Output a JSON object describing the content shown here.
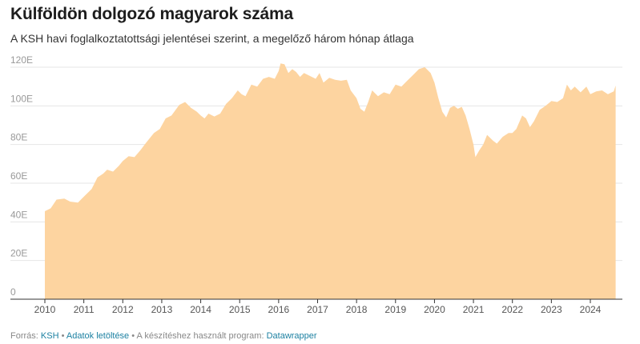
{
  "header": {
    "title": "Külföldön dolgozó magyarok száma",
    "subtitle": "A KSH havi foglalkoztatottsági jelentései szerint, a megelőző három hónap átlaga"
  },
  "footer": {
    "source_prefix": "Forrás:",
    "source_link": "KSH",
    "sep1": "•",
    "download_link": "Adatok letöltése",
    "sep2": "• A készítéshez használt program:",
    "tool_link": "Datawrapper"
  },
  "colors": {
    "area_fill": "#fdd4a0",
    "gridline": "#e6e6e6",
    "link": "#1d81a2"
  },
  "chart_data": {
    "type": "area",
    "title": "Külföldön dolgozó magyarok száma",
    "xlabel": "",
    "ylabel": "",
    "ylim": [
      0,
      120000
    ],
    "xlim": [
      2009.5,
      2025.0
    ],
    "yticks": [
      {
        "value": 0,
        "label": "0"
      },
      {
        "value": 20000,
        "label": "20E"
      },
      {
        "value": 40000,
        "label": "40E"
      },
      {
        "value": 60000,
        "label": "60E"
      },
      {
        "value": 80000,
        "label": "80E"
      },
      {
        "value": 100000,
        "label": "100E"
      },
      {
        "value": 120000,
        "label": "120E"
      }
    ],
    "xticks": [
      "2010",
      "2011",
      "2012",
      "2013",
      "2014",
      "2015",
      "2016",
      "2017",
      "2018",
      "2019",
      "2020",
      "2021",
      "2022",
      "2023",
      "2024"
    ],
    "grid": true,
    "series": [
      {
        "points": [
          [
            2010.0,
            45500
          ],
          [
            2010.15,
            47000
          ],
          [
            2010.3,
            51500
          ],
          [
            2010.5,
            52000
          ],
          [
            2010.65,
            50500
          ],
          [
            2010.85,
            50000
          ],
          [
            2011.0,
            53000
          ],
          [
            2011.2,
            57000
          ],
          [
            2011.35,
            63000
          ],
          [
            2011.5,
            65000
          ],
          [
            2011.6,
            67000
          ],
          [
            2011.75,
            66000
          ],
          [
            2011.9,
            69000
          ],
          [
            2012.0,
            71500
          ],
          [
            2012.15,
            74000
          ],
          [
            2012.3,
            73500
          ],
          [
            2012.45,
            77000
          ],
          [
            2012.6,
            81000
          ],
          [
            2012.8,
            86000
          ],
          [
            2012.95,
            88000
          ],
          [
            2013.1,
            93500
          ],
          [
            2013.25,
            95000
          ],
          [
            2013.45,
            100500
          ],
          [
            2013.6,
            102000
          ],
          [
            2013.75,
            99000
          ],
          [
            2013.9,
            97000
          ],
          [
            2014.0,
            95000
          ],
          [
            2014.1,
            93500
          ],
          [
            2014.2,
            96000
          ],
          [
            2014.35,
            94500
          ],
          [
            2014.5,
            96000
          ],
          [
            2014.65,
            101000
          ],
          [
            2014.8,
            104000
          ],
          [
            2014.95,
            108000
          ],
          [
            2015.05,
            106000
          ],
          [
            2015.15,
            105000
          ],
          [
            2015.3,
            111000
          ],
          [
            2015.45,
            110000
          ],
          [
            2015.6,
            114000
          ],
          [
            2015.75,
            115000
          ],
          [
            2015.9,
            114000
          ],
          [
            2016.0,
            118000
          ],
          [
            2016.05,
            122000
          ],
          [
            2016.15,
            121500
          ],
          [
            2016.25,
            117000
          ],
          [
            2016.35,
            119000
          ],
          [
            2016.45,
            117500
          ],
          [
            2016.55,
            115000
          ],
          [
            2016.65,
            117000
          ],
          [
            2016.8,
            115500
          ],
          [
            2016.95,
            114000
          ],
          [
            2017.05,
            117000
          ],
          [
            2017.15,
            112000
          ],
          [
            2017.3,
            114500
          ],
          [
            2017.45,
            113500
          ],
          [
            2017.6,
            113000
          ],
          [
            2017.75,
            113500
          ],
          [
            2017.85,
            108000
          ],
          [
            2018.0,
            104000
          ],
          [
            2018.1,
            98500
          ],
          [
            2018.2,
            97000
          ],
          [
            2018.3,
            102000
          ],
          [
            2018.4,
            108000
          ],
          [
            2018.55,
            105000
          ],
          [
            2018.7,
            107000
          ],
          [
            2018.85,
            106000
          ],
          [
            2019.0,
            111000
          ],
          [
            2019.15,
            110000
          ],
          [
            2019.3,
            113000
          ],
          [
            2019.45,
            116000
          ],
          [
            2019.6,
            119000
          ],
          [
            2019.75,
            120000
          ],
          [
            2019.9,
            117000
          ],
          [
            2020.0,
            112000
          ],
          [
            2020.1,
            104000
          ],
          [
            2020.2,
            97000
          ],
          [
            2020.3,
            94000
          ],
          [
            2020.4,
            99000
          ],
          [
            2020.5,
            100000
          ],
          [
            2020.6,
            98500
          ],
          [
            2020.7,
            99500
          ],
          [
            2020.8,
            95000
          ],
          [
            2020.9,
            88000
          ],
          [
            2021.0,
            80000
          ],
          [
            2021.05,
            73500
          ],
          [
            2021.15,
            77000
          ],
          [
            2021.25,
            80000
          ],
          [
            2021.35,
            85000
          ],
          [
            2021.5,
            82000
          ],
          [
            2021.6,
            80500
          ],
          [
            2021.75,
            84000
          ],
          [
            2021.9,
            86000
          ],
          [
            2022.0,
            86000
          ],
          [
            2022.1,
            88000
          ],
          [
            2022.25,
            95000
          ],
          [
            2022.35,
            93500
          ],
          [
            2022.45,
            89000
          ],
          [
            2022.55,
            92000
          ],
          [
            2022.7,
            98000
          ],
          [
            2022.85,
            100000
          ],
          [
            2023.0,
            102500
          ],
          [
            2023.15,
            102000
          ],
          [
            2023.3,
            104000
          ],
          [
            2023.4,
            111000
          ],
          [
            2023.5,
            108000
          ],
          [
            2023.6,
            110000
          ],
          [
            2023.75,
            107000
          ],
          [
            2023.9,
            110000
          ],
          [
            2024.0,
            106000
          ],
          [
            2024.15,
            107500
          ],
          [
            2024.3,
            108000
          ],
          [
            2024.45,
            106000
          ],
          [
            2024.6,
            107500
          ],
          [
            2024.65,
            110500
          ]
        ]
      }
    ]
  }
}
